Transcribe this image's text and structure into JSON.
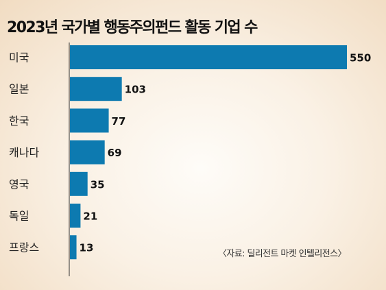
{
  "title": "2023년 국가별 행동주의펀드 활동 기업 수",
  "source": "〈자료: 딜리전트 마켓 인텔리전스〉",
  "bar_color": "#0d7ab0",
  "chart_data": {
    "type": "bar",
    "orientation": "horizontal",
    "title": "2023년 국가별 행동주의펀드 활동 기업 수",
    "categories": [
      "미국",
      "일본",
      "한국",
      "캐나다",
      "영국",
      "독일",
      "프랑스"
    ],
    "values": [
      550,
      103,
      77,
      69,
      35,
      21,
      13
    ],
    "value_labels": [
      "550",
      "103",
      "77",
      "69",
      "35",
      "21",
      "13"
    ],
    "xlim": [
      0,
      550
    ],
    "grid": false,
    "legend": false
  }
}
